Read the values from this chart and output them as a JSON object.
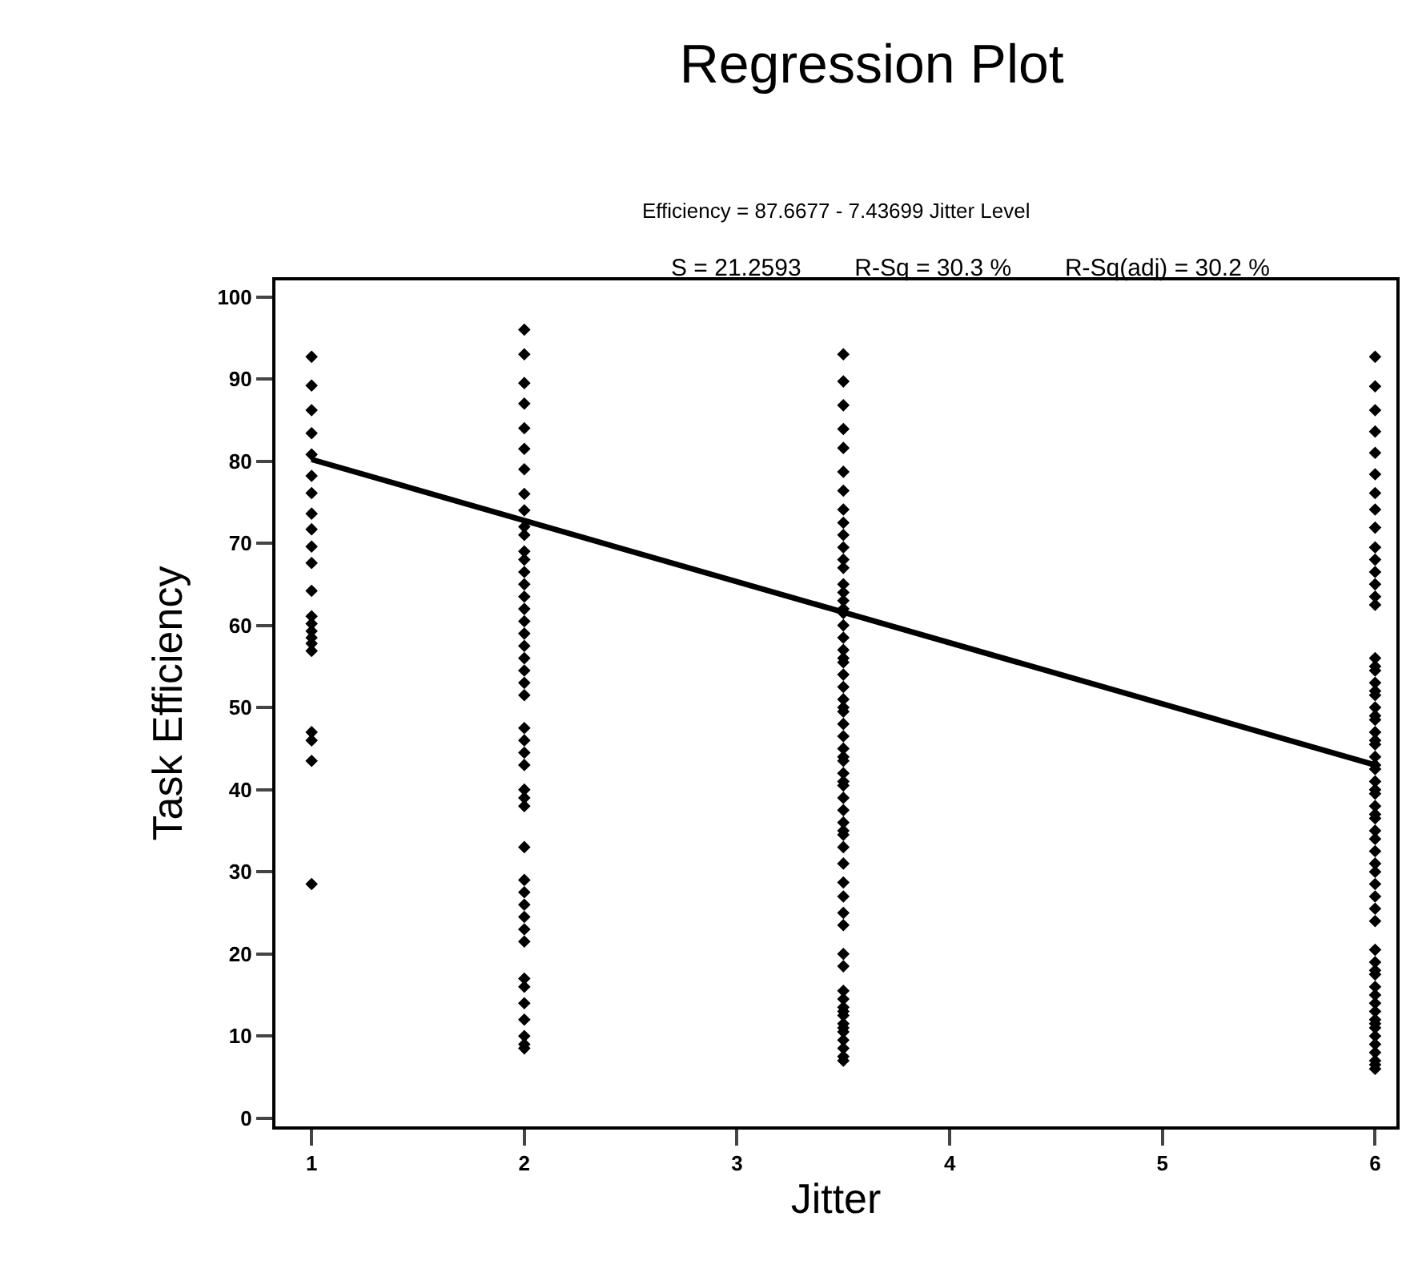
{
  "chart_data": {
    "type": "scatter",
    "title": "Regression Plot",
    "subtitle": "Efficiency = 87.6677 - 7.43699 Jitter Level",
    "annotations": [
      "S = 21.2593     R-Sq = 30.3 %     R-Sq(adj) = 30.2 %"
    ],
    "xlabel": "Jitter",
    "ylabel": "Task Efficiency",
    "xlim": [
      0.83,
      6.1
    ],
    "xticks": [
      1,
      2,
      3,
      4,
      5,
      6
    ],
    "ylim": [
      -1,
      102
    ],
    "yticks": [
      0,
      10,
      20,
      30,
      40,
      50,
      60,
      70,
      80,
      90,
      100
    ],
    "grid": false,
    "marker": "diamond",
    "series": [
      {
        "color": "#000000",
        "x": [
          1,
          1,
          1,
          1,
          1,
          1,
          1,
          1,
          1,
          1,
          1,
          1,
          1,
          1,
          1,
          1,
          1,
          1,
          1,
          1,
          1,
          1
        ],
        "values": [
          92.7,
          89.2,
          86.2,
          83.4,
          80.8,
          78.2,
          76.1,
          73.6,
          71.7,
          69.6,
          67.6,
          64.2,
          61.1,
          60.2,
          59.3,
          58.5,
          57.8,
          56.9,
          47,
          46,
          43.5,
          28.5
        ]
      },
      {
        "color": "#000000",
        "x": [
          2,
          2,
          2,
          2,
          2,
          2,
          2,
          2,
          2,
          2,
          2,
          2,
          2,
          2,
          2,
          2,
          2,
          2,
          2,
          2,
          2,
          2,
          2,
          2,
          2,
          2,
          2,
          2,
          2,
          2,
          2,
          2,
          2,
          2,
          2,
          2,
          2,
          2,
          2,
          2,
          2,
          2,
          2,
          2,
          2
        ],
        "values": [
          96,
          93,
          89.5,
          87,
          84,
          81.5,
          79,
          76,
          74,
          72,
          71,
          69,
          68,
          66.5,
          65,
          63.5,
          62,
          60.5,
          59,
          57.5,
          56,
          54.5,
          53,
          51.5,
          47.5,
          46,
          44.5,
          43,
          40,
          39,
          38,
          33,
          29,
          27.5,
          26,
          24.5,
          23,
          21.5,
          17,
          16,
          14,
          12,
          10,
          9,
          8.5
        ]
      },
      {
        "color": "#000000",
        "x": [
          3.5,
          3.5,
          3.5,
          3.5,
          3.5,
          3.5,
          3.5,
          3.5,
          3.5,
          3.5,
          3.5,
          3.5,
          3.5,
          3.5,
          3.5,
          3.5,
          3.5,
          3.5,
          3.5,
          3.5,
          3.5,
          3.5,
          3.5,
          3.5,
          3.5,
          3.5,
          3.5,
          3.5,
          3.5,
          3.5,
          3.5,
          3.5,
          3.5,
          3.5,
          3.5,
          3.5,
          3.5,
          3.5,
          3.5,
          3.5,
          3.5,
          3.5,
          3.5,
          3.5,
          3.5,
          3.5,
          3.5,
          3.5,
          3.5,
          3.5,
          3.5,
          3.5,
          3.5,
          3.5,
          3.5,
          3.5,
          3.5,
          3.5,
          3.5,
          3.5,
          3.5
        ],
        "values": [
          93,
          89.7,
          86.8,
          83.9,
          81.6,
          78.7,
          76.4,
          74.1,
          72.5,
          71,
          69.5,
          68,
          67,
          65,
          63,
          61.5,
          60,
          58.5,
          57,
          55.5,
          54,
          52.5,
          51,
          49.5,
          48,
          46.5,
          45,
          43.5,
          42,
          40.5,
          39,
          37.5,
          36,
          34.5,
          33,
          31,
          28.7,
          27,
          25,
          23.5,
          20,
          18.5,
          15.5,
          14.5,
          13.5,
          12.5,
          11.5,
          10.5,
          9.5,
          8.5,
          7.5,
          7,
          62,
          64,
          56,
          50,
          44,
          41,
          35,
          11,
          13
        ]
      },
      {
        "color": "#000000",
        "x": [
          6,
          6,
          6,
          6,
          6,
          6,
          6,
          6,
          6,
          6,
          6,
          6,
          6,
          6,
          6,
          6,
          6,
          6,
          6,
          6,
          6,
          6,
          6,
          6,
          6,
          6,
          6,
          6,
          6,
          6,
          6,
          6,
          6,
          6,
          6,
          6,
          6,
          6,
          6,
          6,
          6,
          6,
          6,
          6,
          6,
          6,
          6,
          6,
          6,
          6,
          6,
          6,
          6,
          6,
          6,
          6,
          6,
          6,
          6,
          6,
          6,
          6
        ],
        "values": [
          92.7,
          89.1,
          86.2,
          83.6,
          81,
          78.4,
          76.1,
          74.1,
          71.9,
          69.5,
          68,
          66.5,
          65,
          63.5,
          62.5,
          56,
          54.5,
          53,
          51.5,
          50,
          48.5,
          47,
          45.5,
          44,
          42.5,
          41,
          39.5,
          38,
          36.5,
          35,
          32.5,
          31,
          30,
          28.5,
          27,
          25.5,
          24,
          20.5,
          19,
          17.5,
          16,
          15,
          14,
          13,
          12,
          11,
          10,
          9,
          8,
          7,
          6.5,
          6,
          55,
          49,
          43,
          37,
          34,
          52,
          46,
          40,
          18,
          11.5
        ]
      },
      {
        "type": "line",
        "color": "#000000",
        "x": [
          1,
          6
        ],
        "values": [
          80.2,
          43.0
        ],
        "marker": "none",
        "line_style": "solid"
      }
    ]
  }
}
